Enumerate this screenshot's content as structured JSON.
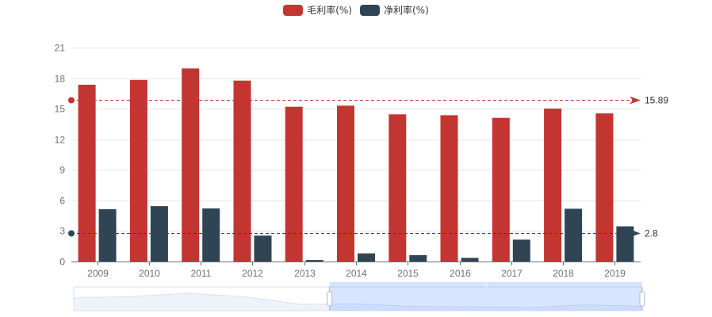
{
  "legend": {
    "items": [
      {
        "label": "毛利率(%)",
        "color": "#c23531"
      },
      {
        "label": "净利率(%)",
        "color": "#2f4554"
      }
    ]
  },
  "chart_data": {
    "type": "bar",
    "title": "",
    "xlabel": "",
    "ylabel": "",
    "categories": [
      "2009",
      "2010",
      "2011",
      "2012",
      "2013",
      "2014",
      "2015",
      "2016",
      "2017",
      "2018",
      "2019"
    ],
    "series": [
      {
        "name": "毛利率(%)",
        "color": "#c23531",
        "values": [
          17.35,
          17.83,
          18.95,
          17.76,
          15.19,
          15.3,
          14.44,
          14.36,
          14.1,
          15.01,
          14.54
        ],
        "markLine": {
          "type": "average",
          "value": 15.89,
          "label": "15.89"
        }
      },
      {
        "name": "净利率(%)",
        "color": "#2f4554",
        "values": [
          5.13,
          5.44,
          5.21,
          2.54,
          0.15,
          0.8,
          0.62,
          0.36,
          2.15,
          5.18,
          3.45
        ],
        "markLine": {
          "type": "average",
          "value": 2.8,
          "label": "2.8"
        }
      }
    ],
    "ylim": [
      0,
      21
    ],
    "yticks": [
      0,
      3,
      6,
      9,
      12,
      15,
      18,
      21
    ],
    "grid": true,
    "legend_position": "top-center",
    "dataZoom": {
      "start_percent": 45,
      "end_percent": 100
    }
  }
}
